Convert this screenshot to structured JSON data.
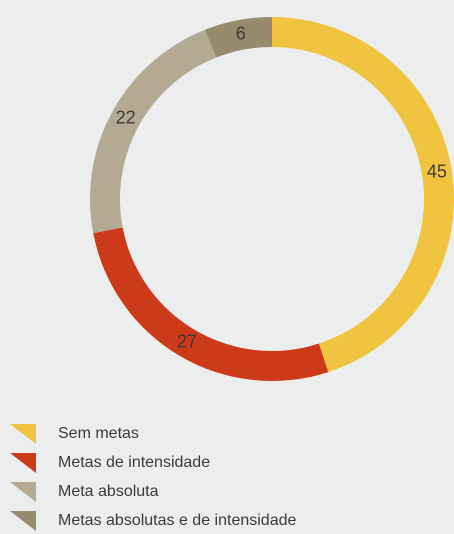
{
  "chart_data": {
    "type": "donut",
    "categories": [
      "Sem metas",
      "Metas de intensidade",
      "Meta absoluta",
      "Metas absolutas e de intensidade"
    ],
    "values": [
      45,
      27,
      22,
      6
    ],
    "colors": [
      "#f0c43f",
      "#cc3a19",
      "#b4aa93",
      "#968a6f"
    ]
  }
}
